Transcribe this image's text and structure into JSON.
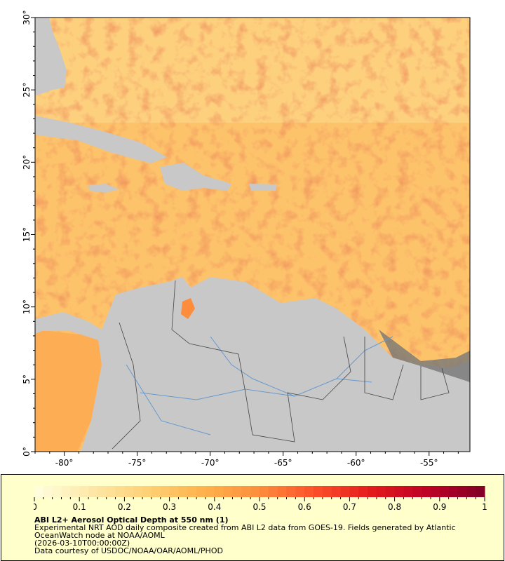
{
  "map": {
    "lon_ticks": [
      "-80°",
      "-75°",
      "-70°",
      "-65°",
      "-60°",
      "-55°"
    ],
    "lon_values": [
      -80,
      -75,
      -70,
      -65,
      -60,
      -55
    ],
    "lat_ticks": [
      "0°",
      "5°",
      "10°",
      "15°",
      "20°",
      "25°",
      "30°"
    ],
    "lat_values": [
      0,
      5,
      10,
      15,
      20,
      25,
      30
    ],
    "lon_range": [
      -82,
      -52.2
    ],
    "lat_range": [
      0,
      30
    ],
    "land_color": "#c8c8c8",
    "river_color": "#6699cc",
    "border_color": "#555555"
  },
  "colorbar": {
    "ticks": [
      "0",
      "0.1",
      "0.2",
      "0.3",
      "0.4",
      "0.5",
      "0.6",
      "0.7",
      "0.8",
      "0.9",
      "1"
    ],
    "range": [
      0,
      1
    ],
    "stops": [
      "#ffffe0",
      "#fee8a8",
      "#fed176",
      "#feb24c",
      "#fd8d3c",
      "#fc4e2a",
      "#e31a1c",
      "#bd0026",
      "#800026"
    ]
  },
  "legend": {
    "title": "ABI L2+ Aerosol Optical Depth at 550 nm (1)",
    "line1": "Experimental NRT AOD daily composite created from ABI L2 data from GOES-19. Fields generated by Atlantic",
    "line2": "OceanWatch node at NOAA/AOML",
    "line3": "(2026-03-10T00:00:00Z)",
    "line4": "Data courtesy of USDOC/NOAA/OAR/AOML/PHOD"
  }
}
